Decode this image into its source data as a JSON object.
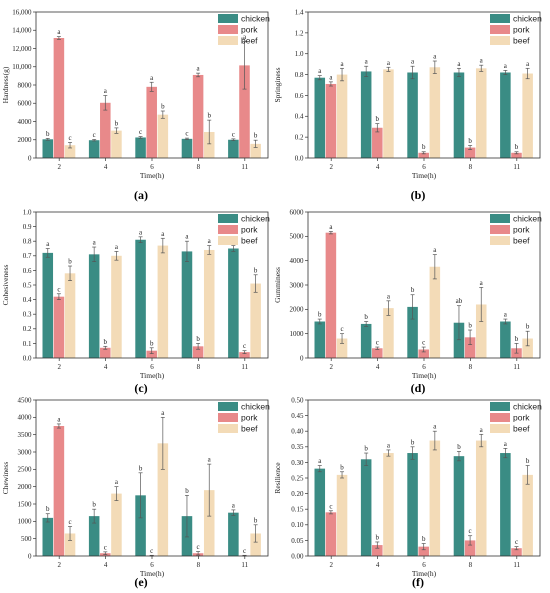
{
  "colors": {
    "chicken": "#3a8c84",
    "pork": "#e8898a",
    "beef": "#f3dbb7"
  },
  "chart_data": [
    {
      "type": "bar",
      "panel_label": "(a)",
      "xlabel": "Time(h)",
      "ylabel": "Hardness(g)",
      "categories": [
        "2",
        "4",
        "6",
        "8",
        "11"
      ],
      "ylim": [
        0,
        16000
      ],
      "yticks": [
        "0",
        "2000",
        "4000",
        "6000",
        "8000",
        "10,000",
        "12,000",
        "14,000",
        "16,000"
      ],
      "legend_position": "top-right",
      "series": [
        {
          "name": "chicken",
          "values": [
            2050,
            1950,
            2250,
            2100,
            2000
          ],
          "errors": [
            100,
            80,
            100,
            80,
            100
          ],
          "labels": [
            "b",
            "c",
            "c",
            "c",
            "c"
          ]
        },
        {
          "name": "pork",
          "values": [
            13150,
            6050,
            7800,
            9100,
            10150
          ],
          "errors": [
            150,
            800,
            500,
            200,
            2600
          ],
          "labels": [
            "a",
            "a",
            "a",
            "a",
            "a"
          ]
        },
        {
          "name": "beef",
          "values": [
            1400,
            3000,
            4750,
            2850,
            1550
          ],
          "errors": [
            300,
            300,
            400,
            1300,
            400
          ],
          "labels": [
            "c",
            "b",
            "b",
            "b",
            "b"
          ]
        }
      ]
    },
    {
      "type": "bar",
      "panel_label": "(b)",
      "xlabel": "Time(h)",
      "ylabel": "Springiness",
      "categories": [
        "2",
        "4",
        "6",
        "8",
        "11"
      ],
      "ylim": [
        0,
        1.4
      ],
      "yticks": [
        "0.0",
        "0.2",
        "0.4",
        "0.6",
        "0.8",
        "1.0",
        "1.2",
        "1.4"
      ],
      "legend_position": "top-right",
      "series": [
        {
          "name": "chicken",
          "values": [
            0.77,
            0.83,
            0.82,
            0.82,
            0.82
          ],
          "errors": [
            0.02,
            0.05,
            0.06,
            0.04,
            0.02
          ],
          "labels": [
            "a",
            "a",
            "a",
            "a",
            "a"
          ]
        },
        {
          "name": "pork",
          "values": [
            0.71,
            0.29,
            0.05,
            0.1,
            0.05
          ],
          "errors": [
            0.02,
            0.04,
            0.01,
            0.02,
            0.01
          ],
          "labels": [
            "a",
            "b",
            "b",
            "b",
            "b"
          ]
        },
        {
          "name": "beef",
          "values": [
            0.8,
            0.85,
            0.87,
            0.86,
            0.81
          ],
          "errors": [
            0.06,
            0.02,
            0.06,
            0.03,
            0.05
          ],
          "labels": [
            "a",
            "a",
            "a",
            "a",
            "a"
          ]
        }
      ]
    },
    {
      "type": "bar",
      "panel_label": "(c)",
      "xlabel": "Time(h)",
      "ylabel": "Cohesiveness",
      "categories": [
        "2",
        "4",
        "6",
        "8",
        "11"
      ],
      "ylim": [
        0,
        1.0
      ],
      "yticks": [
        "0.0",
        "0.1",
        "0.2",
        "0.3",
        "0.4",
        "0.5",
        "0.6",
        "0.7",
        "0.8",
        "0.9",
        "1.0"
      ],
      "legend_position": "top-right",
      "series": [
        {
          "name": "chicken",
          "values": [
            0.72,
            0.71,
            0.81,
            0.73,
            0.75
          ],
          "errors": [
            0.03,
            0.05,
            0.02,
            0.07,
            0.02
          ],
          "labels": [
            "a",
            "a",
            "a",
            "a",
            "a"
          ]
        },
        {
          "name": "pork",
          "values": [
            0.42,
            0.07,
            0.05,
            0.08,
            0.04
          ],
          "errors": [
            0.02,
            0.01,
            0.02,
            0.02,
            0.01
          ],
          "labels": [
            "c",
            "b",
            "b",
            "b",
            "c"
          ]
        },
        {
          "name": "beef",
          "values": [
            0.58,
            0.7,
            0.77,
            0.74,
            0.51
          ],
          "errors": [
            0.05,
            0.03,
            0.05,
            0.03,
            0.06
          ],
          "labels": [
            "b",
            "a",
            "a",
            "a",
            "b"
          ]
        }
      ]
    },
    {
      "type": "bar",
      "panel_label": "(d)",
      "xlabel": "Time(h)",
      "ylabel": "Gumminess",
      "categories": [
        "2",
        "4",
        "6",
        "8",
        "11"
      ],
      "ylim": [
        0,
        6000
      ],
      "yticks": [
        "0",
        "1000",
        "2000",
        "3000",
        "4000",
        "5000",
        "6000"
      ],
      "legend_position": "top-right",
      "series": [
        {
          "name": "chicken",
          "values": [
            1500,
            1400,
            2100,
            1450,
            1500
          ],
          "errors": [
            100,
            100,
            500,
            700,
            100
          ],
          "labels": [
            "b",
            "b",
            "b",
            "ab",
            "a"
          ]
        },
        {
          "name": "pork",
          "values": [
            5150,
            400,
            350,
            850,
            400
          ],
          "errors": [
            50,
            50,
            100,
            300,
            200
          ],
          "labels": [
            "a",
            "c",
            "c",
            "b",
            "b"
          ]
        },
        {
          "name": "beef",
          "values": [
            800,
            2050,
            3750,
            2200,
            800
          ],
          "errors": [
            200,
            300,
            500,
            700,
            300
          ],
          "labels": [
            "c",
            "a",
            "a",
            "a",
            "b"
          ]
        }
      ]
    },
    {
      "type": "bar",
      "panel_label": "(e)",
      "xlabel": "Time(h)",
      "ylabel": "Chewiness",
      "categories": [
        "2",
        "4",
        "6",
        "8",
        "11"
      ],
      "ylim": [
        0,
        4500
      ],
      "yticks": [
        "0",
        "500",
        "1000",
        "1500",
        "2000",
        "2500",
        "3000",
        "3500",
        "4000",
        "4500"
      ],
      "legend_position": "top-right",
      "series": [
        {
          "name": "chicken",
          "values": [
            1100,
            1150,
            1750,
            1150,
            1250
          ],
          "errors": [
            120,
            200,
            650,
            600,
            80
          ],
          "labels": [
            "b",
            "b",
            "b",
            "b",
            "a"
          ]
        },
        {
          "name": "pork",
          "values": [
            3750,
            80,
            10,
            80,
            10
          ],
          "errors": [
            60,
            40,
            10,
            50,
            10
          ],
          "labels": [
            "a",
            "c",
            "c",
            "c",
            "c"
          ]
        },
        {
          "name": "beef",
          "values": [
            650,
            1800,
            3250,
            1900,
            650
          ],
          "errors": [
            200,
            200,
            750,
            750,
            250
          ],
          "labels": [
            "c",
            "a",
            "a",
            "a",
            "b"
          ]
        }
      ]
    },
    {
      "type": "bar",
      "panel_label": "(f)",
      "xlabel": "Time(h)",
      "ylabel": "Resilience",
      "categories": [
        "2",
        "4",
        "6",
        "8",
        "11"
      ],
      "ylim": [
        0,
        0.5
      ],
      "yticks": [
        "0.00",
        "0.05",
        "0.10",
        "0.15",
        "0.20",
        "0.25",
        "0.30",
        "0.35",
        "0.40",
        "0.45",
        "0.50"
      ],
      "legend_position": "top-right",
      "series": [
        {
          "name": "chicken",
          "values": [
            0.28,
            0.31,
            0.33,
            0.32,
            0.33
          ],
          "errors": [
            0.01,
            0.02,
            0.02,
            0.015,
            0.015
          ],
          "labels": [
            "a",
            "b",
            "b",
            "b",
            "a"
          ]
        },
        {
          "name": "pork",
          "values": [
            0.14,
            0.035,
            0.03,
            0.05,
            0.025
          ],
          "errors": [
            0.005,
            0.01,
            0.01,
            0.015,
            0.005
          ],
          "labels": [
            "c",
            "b",
            "b",
            "c",
            "c"
          ]
        },
        {
          "name": "beef",
          "values": [
            0.26,
            0.33,
            0.37,
            0.37,
            0.26
          ],
          "errors": [
            0.01,
            0.01,
            0.03,
            0.02,
            0.03
          ],
          "labels": [
            "b",
            "a",
            "a",
            "a",
            "b"
          ]
        }
      ]
    }
  ]
}
